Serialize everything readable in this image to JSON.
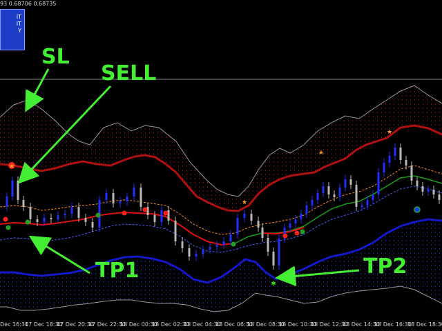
{
  "header": {
    "ohlc_text": "93 0.68706 0.68735",
    "legend_lines": [
      "IT",
      "IT",
      "Y"
    ]
  },
  "annotations": [
    {
      "label": "SL"
    },
    {
      "label": "SELL"
    },
    {
      "label": "TP1"
    },
    {
      "label": "TP2"
    }
  ],
  "x_axis": {
    "ticks": [
      "Dec 16:30",
      "17 Dec 18:30",
      "17 Dec 20:30",
      "17 Dec 22:30",
      "18 Dec 00:30",
      "18 Dec 02:30",
      "18 Dec 04:30",
      "18 Dec 06:30",
      "18 Dec 08:30",
      "18 Dec 10:30",
      "18 Dec 12:30",
      "18 Dec 14:30",
      "18 Dec 16:30",
      "18 Dec 18:30"
    ]
  },
  "colors": {
    "background": "#000000",
    "annotation": "#44ee33",
    "upper_band": "#b01010",
    "lower_band": "#1418c8",
    "mid_line": "#e01010",
    "mid_line_green": "#18a018",
    "dashed_orange": "#ff8c1a",
    "dashed_blue": "#4a5cff",
    "envelope": "#9a9a9a",
    "bull_candle": "#2030ff",
    "bear_candle": "#b8b8b8",
    "signal_star": "#ffa020"
  }
}
